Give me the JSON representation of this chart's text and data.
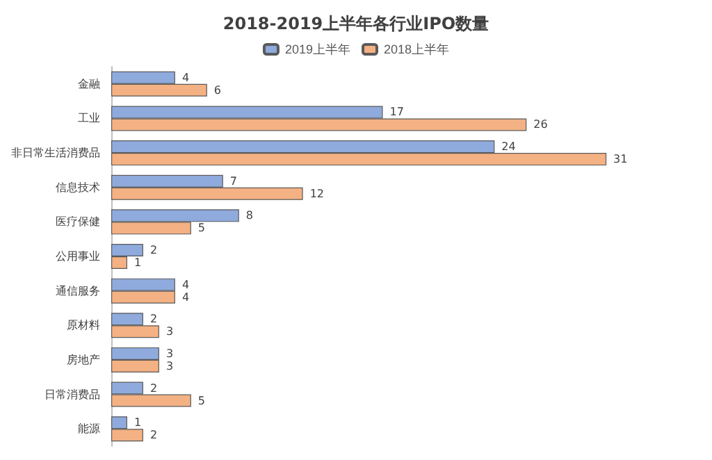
{
  "chart_data": {
    "type": "bar",
    "orientation": "horizontal",
    "title": "2018-2019上半年各行业IPO数量",
    "categories": [
      "金融",
      "工业",
      "非日常生活消费品",
      "信息技术",
      "医疗保健",
      "公用事业",
      "通信服务",
      "原材料",
      "房地产",
      "日常消费品",
      "能源"
    ],
    "series": [
      {
        "name": "2019上半年",
        "color": "#8faadc",
        "values": [
          4,
          17,
          24,
          7,
          8,
          2,
          4,
          2,
          3,
          2,
          1
        ]
      },
      {
        "name": "2018上半年",
        "color": "#f4b183",
        "values": [
          6,
          26,
          31,
          12,
          5,
          1,
          4,
          3,
          3,
          5,
          2
        ]
      }
    ],
    "data_labels": true,
    "legend": "top",
    "grid": false,
    "tick_labels": "y"
  }
}
